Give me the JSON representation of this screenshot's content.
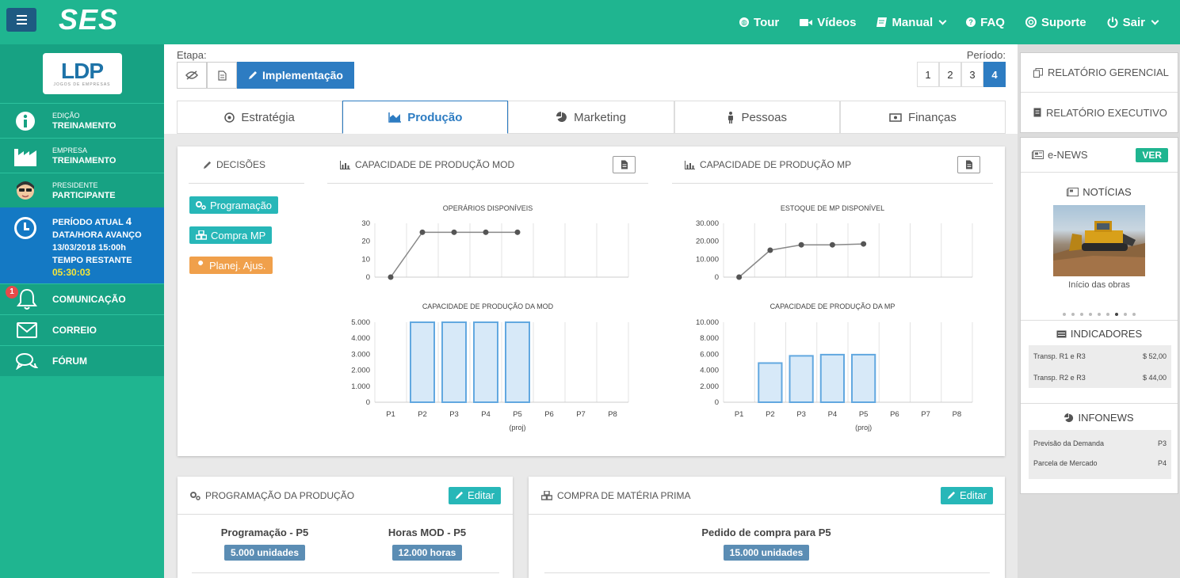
{
  "app": {
    "brand": "SES"
  },
  "topnav": [
    {
      "label": "Tour",
      "icon": "globe-icon"
    },
    {
      "label": "Vídeos",
      "icon": "video-icon"
    },
    {
      "label": "Manual",
      "icon": "book-icon",
      "dropdown": true
    },
    {
      "label": "FAQ",
      "icon": "question-icon"
    },
    {
      "label": "Suporte",
      "icon": "lifebuoy-icon"
    },
    {
      "label": "Sair",
      "icon": "power-icon",
      "dropdown": true
    }
  ],
  "sidebar": {
    "logo": {
      "text": "LDP",
      "sub": "JOGOS DE EMPRESAS"
    },
    "info": [
      {
        "label": "EDIÇÃO",
        "value": "TREINAMENTO",
        "icon": "info-icon"
      },
      {
        "label": "EMPRESA",
        "value": "TREINAMENTO",
        "icon": "factory-icon"
      },
      {
        "label": "PRESIDENTE",
        "value": "PARTICIPANTE",
        "icon": "avatar-icon"
      }
    ],
    "period": {
      "label_period": "PERÍODO ATUAL",
      "period_value": "4",
      "label_date": "DATA/HORA AVANÇO",
      "date_value": "13/03/2018 15:00h",
      "label_remaining": "TEMPO RESTANTE",
      "remaining_value": "05:30:03"
    },
    "links": [
      {
        "label": "COMUNICAÇÃO",
        "icon": "bell-icon",
        "badge": "1"
      },
      {
        "label": "CORREIO",
        "icon": "envelope-icon"
      },
      {
        "label": "FÓRUM",
        "icon": "chat-icon"
      }
    ]
  },
  "etapa": {
    "label": "Etapa:",
    "active_label": "Implementação"
  },
  "periodo": {
    "label": "Período:",
    "options": [
      "1",
      "2",
      "3",
      "4"
    ],
    "selected": "4"
  },
  "tabs": [
    {
      "label": "Estratégia",
      "icon": "target-icon"
    },
    {
      "label": "Produção",
      "icon": "area-chart-icon",
      "active": true
    },
    {
      "label": "Marketing",
      "icon": "pie-chart-icon"
    },
    {
      "label": "Pessoas",
      "icon": "person-icon"
    },
    {
      "label": "Finanças",
      "icon": "money-icon"
    }
  ],
  "decisoes": {
    "title": "DECISÕES",
    "buttons": [
      {
        "label": "Programação",
        "color": "#27b7b8"
      },
      {
        "label": "Compra MP",
        "color": "#27b7b8"
      },
      {
        "label": "Planej. Ajus.",
        "color": "#f0a04b"
      }
    ]
  },
  "chart_panels": {
    "mod": {
      "title": "CAPACIDADE DE PRODUÇÃO MOD"
    },
    "mp": {
      "title": "CAPACIDADE DE PRODUÇÃO MP"
    }
  },
  "chart_data": [
    {
      "type": "line",
      "title": "OPERÁRIOS DISPONÍVEIS",
      "x": [
        "P1",
        "P2",
        "P3",
        "P4",
        "P5",
        "P6",
        "P7",
        "P8"
      ],
      "values": [
        0,
        25,
        25,
        25,
        25,
        null,
        null,
        null
      ],
      "yticks": [
        "0",
        "10",
        "20",
        "30"
      ],
      "ylim": [
        0,
        30
      ],
      "grid": true
    },
    {
      "type": "bar",
      "title": "CAPACIDADE DE PRODUÇÃO DA MOD",
      "categories": [
        "P1",
        "P2",
        "P3",
        "P4",
        "P5",
        "P6",
        "P7",
        "P8"
      ],
      "x_note": "(proj)",
      "values": [
        0,
        5000,
        5000,
        5000,
        5000,
        0,
        0,
        0
      ],
      "yticks": [
        "0",
        "1.000",
        "2.000",
        "3.000",
        "4.000",
        "5.000"
      ],
      "ylim": [
        0,
        5000
      ],
      "grid": true
    },
    {
      "type": "line",
      "title": "ESTOQUE DE MP DISPONÍVEL",
      "x": [
        "P1",
        "P2",
        "P3",
        "P4",
        "P5",
        "P6",
        "P7",
        "P8"
      ],
      "values": [
        0,
        15000,
        18000,
        18000,
        18500,
        null,
        null,
        null
      ],
      "yticks": [
        "0",
        "10.000",
        "20.000",
        "30.000"
      ],
      "ylim": [
        0,
        30000
      ],
      "grid": true
    },
    {
      "type": "bar",
      "title": "CAPACIDADE DE PRODUÇÃO DA MP",
      "categories": [
        "P1",
        "P2",
        "P3",
        "P4",
        "P5",
        "P6",
        "P7",
        "P8"
      ],
      "x_note": "(proj)",
      "values": [
        0,
        4900,
        5800,
        5950,
        5950,
        0,
        0,
        0
      ],
      "yticks": [
        "0",
        "2.000",
        "4.000",
        "6.000",
        "8.000",
        "10.000"
      ],
      "ylim": [
        0,
        10000
      ],
      "grid": true
    }
  ],
  "programacao": {
    "title": "PROGRAMAÇÃO DA PRODUÇÃO",
    "edit_label": "Editar",
    "items": [
      {
        "label": "Programação - P5",
        "value": "5.000 unidades"
      },
      {
        "label": "Horas MOD - P5",
        "value": "12.000 horas"
      }
    ]
  },
  "compra": {
    "title": "COMPRA DE MATÉRIA PRIMA",
    "edit_label": "Editar",
    "items": [
      {
        "label": "Pedido de compra para P5",
        "value": "15.000 unidades"
      }
    ]
  },
  "reports": [
    {
      "label": "RELATÓRIO GERENCIAL",
      "icon": "copy-icon"
    },
    {
      "label": "RELATÓRIO EXECUTIVO",
      "icon": "document-icon"
    }
  ],
  "enews": {
    "title": "e-NEWS",
    "ver_label": "VER",
    "noticias_title": "NOTÍCIAS",
    "caption": "Início das obras",
    "dots": 9,
    "active_dot": 6,
    "indicadores_title": "INDICADORES",
    "indicadores": [
      {
        "label": "Transp. R1 e R3",
        "value": "$ 52,00"
      },
      {
        "label": "Transp. R2 e R3",
        "value": "$ 44,00"
      }
    ],
    "infonews_title": "INFONEWS",
    "infonews": [
      {
        "label": "Previsão da Demanda",
        "value": "P3"
      },
      {
        "label": "Parcela de Mercado",
        "value": "P4"
      }
    ]
  }
}
